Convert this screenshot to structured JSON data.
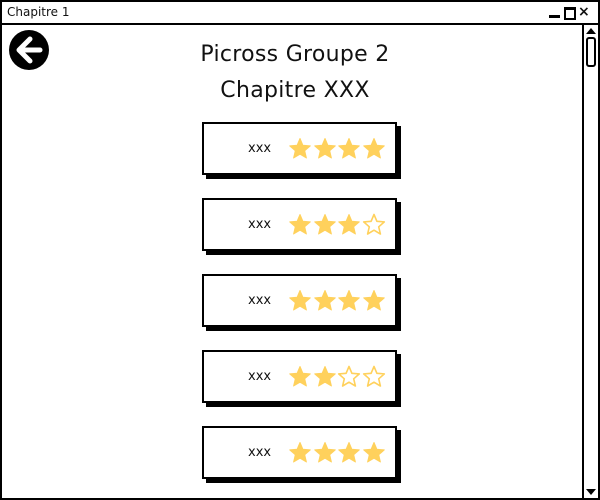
{
  "window": {
    "title": "Chapitre 1",
    "controls": {
      "minimize": "minimize-icon",
      "maximize": "maximize-icon",
      "close": "×"
    }
  },
  "header": {
    "back_icon": "arrow-left-circle-icon",
    "title": "Picross Groupe 2",
    "subtitle": "Chapitre XXX"
  },
  "colors": {
    "star_filled": "#FFD15C",
    "star_empty_stroke": "#FFD15C",
    "border": "#000000"
  },
  "levels": [
    {
      "label": "xxx",
      "stars": 4,
      "max_stars": 4
    },
    {
      "label": "xxx",
      "stars": 3,
      "max_stars": 4
    },
    {
      "label": "xxx",
      "stars": 4,
      "max_stars": 4
    },
    {
      "label": "xxx",
      "stars": 2,
      "max_stars": 4
    },
    {
      "label": "xxx",
      "stars": 4,
      "max_stars": 4
    }
  ]
}
